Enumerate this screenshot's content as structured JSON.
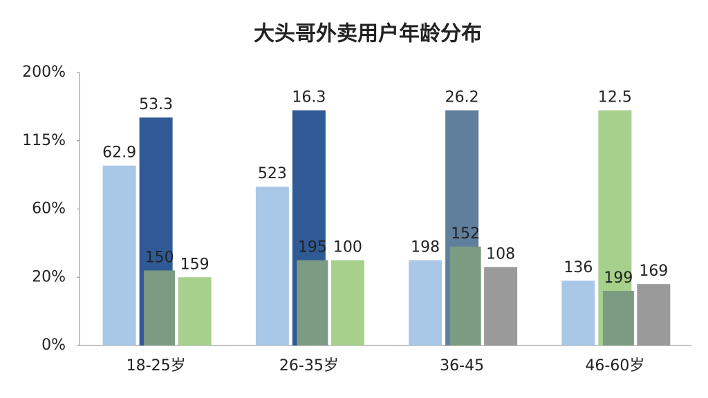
{
  "chart_data": {
    "type": "bar",
    "title": "大头哥外卖用户年龄分布",
    "categories": [
      "18-25岁",
      "26-35岁",
      "36-45",
      "46-60岁"
    ],
    "series": [
      {
        "color": "#a9c8e8",
        "values": [
          95,
          78,
          30,
          19
        ],
        "annotations": [
          "62.9",
          "523",
          "198",
          "136"
        ]
      },
      {
        "color": "#2f5a96",
        "colors": [
          "#2f5a96",
          "#2f5a96",
          "#5f7f9c",
          "#a8d08d"
        ],
        "values": [
          144,
          153,
          153,
          153
        ],
        "annotations": [
          "53.3",
          "16.3",
          "26.2",
          "12.5"
        ]
      },
      {
        "color": "#7b9b82",
        "values": [
          24,
          30,
          38,
          16
        ],
        "annotations": [
          "150",
          "195",
          "152",
          "199"
        ]
      },
      {
        "color": "#a8d08d",
        "colors": [
          "#a8d08d",
          "#a8d08d",
          "#9a9a9a",
          "#9a9a9a"
        ],
        "values": [
          20,
          30,
          26,
          18
        ],
        "annotations": [
          "159",
          "100",
          "108",
          "169"
        ]
      }
    ],
    "ylim": [
      0,
      200
    ],
    "yticks": [
      {
        "value": 0,
        "label": "0%"
      },
      {
        "value": 20,
        "label": "20%"
      },
      {
        "value": 60,
        "label": "60%"
      },
      {
        "value": 115,
        "label": "115%"
      },
      {
        "value": 200,
        "label": "200%"
      }
    ]
  }
}
